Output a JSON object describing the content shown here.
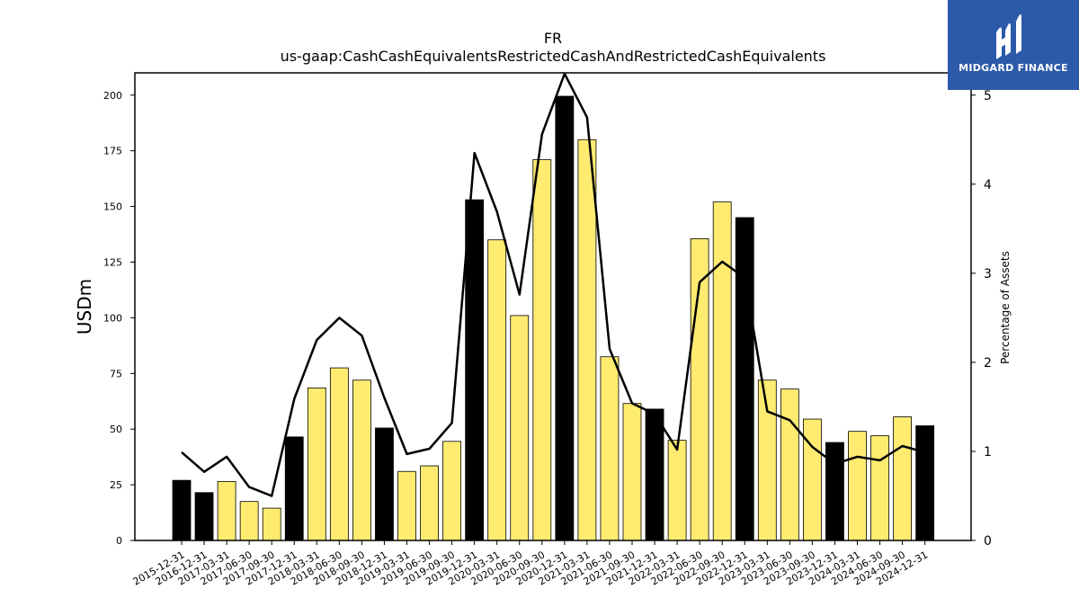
{
  "header": {
    "title_line1": "FR",
    "title_line2": "us-gaap:CashCashEquivalentsRestrictedCashAndRestrictedCashEquivalents"
  },
  "logo": {
    "text": "MIDGARD FINANCE",
    "background": "#2d5aa8"
  },
  "chart_data": {
    "type": "bar",
    "title": "FR\nus-gaap:CashCashEquivalentsRestrictedCashAndRestrictedCashEquivalents",
    "ylabel": "USDm",
    "y2label": "Percentage of Assets",
    "ylim": [
      0,
      210
    ],
    "y2lim": [
      0,
      5.25
    ],
    "yticks": [
      0,
      25,
      50,
      75,
      100,
      125,
      150,
      175,
      200
    ],
    "y2ticks": [
      0,
      1,
      2,
      3,
      4,
      5
    ],
    "categories": [
      "2015-12-31",
      "2016-12-31",
      "2017-03-31",
      "2017-06-30",
      "2017-09-30",
      "2017-12-31",
      "2018-03-31",
      "2018-06-30",
      "2018-09-30",
      "2018-12-31",
      "2019-03-31",
      "2019-06-30",
      "2019-09-30",
      "2019-12-31",
      "2020-03-31",
      "2020-06-30",
      "2020-09-30",
      "2020-12-31",
      "2021-03-31",
      "2021-06-30",
      "2021-09-30",
      "2021-12-31",
      "2022-03-31",
      "2022-06-30",
      "2022-09-30",
      "2022-12-31",
      "2023-03-31",
      "2023-06-30",
      "2023-09-30",
      "2023-12-31",
      "2024-03-31",
      "2024-06-30",
      "2024-09-30",
      "2024-12-31"
    ],
    "series": [
      {
        "type": "bar",
        "values": [
          27,
          21.5,
          26.5,
          17.5,
          14.5,
          46.5,
          68.5,
          77.5,
          72,
          50.5,
          31,
          33.5,
          44.5,
          153,
          135,
          101,
          171,
          199.5,
          180,
          82.5,
          61.5,
          59,
          45,
          135.5,
          152,
          145,
          72,
          68,
          54.5,
          44,
          49,
          47,
          55.5,
          51.5
        ],
        "year_end": [
          true,
          true,
          false,
          false,
          false,
          true,
          false,
          false,
          false,
          true,
          false,
          false,
          false,
          true,
          false,
          false,
          false,
          true,
          false,
          false,
          false,
          true,
          false,
          false,
          false,
          true,
          false,
          false,
          false,
          true,
          false,
          false,
          false,
          true
        ]
      },
      {
        "type": "line",
        "axis": "right",
        "values": [
          0.99,
          0.77,
          0.94,
          0.6,
          0.5,
          1.59,
          2.25,
          2.5,
          2.3,
          1.6,
          0.97,
          1.03,
          1.32,
          4.35,
          3.69,
          2.76,
          4.56,
          5.24,
          4.75,
          2.15,
          1.54,
          1.42,
          1.02,
          2.9,
          3.13,
          2.95,
          1.45,
          1.35,
          1.05,
          0.86,
          0.94,
          0.9,
          1.06,
          0.99
        ]
      }
    ],
    "colors": {
      "year_end_bar": "#000000",
      "quarter_bar": "#ffeb70",
      "bar_edge": "#000000",
      "line": "#000000"
    },
    "grid": false,
    "legend": "none"
  }
}
